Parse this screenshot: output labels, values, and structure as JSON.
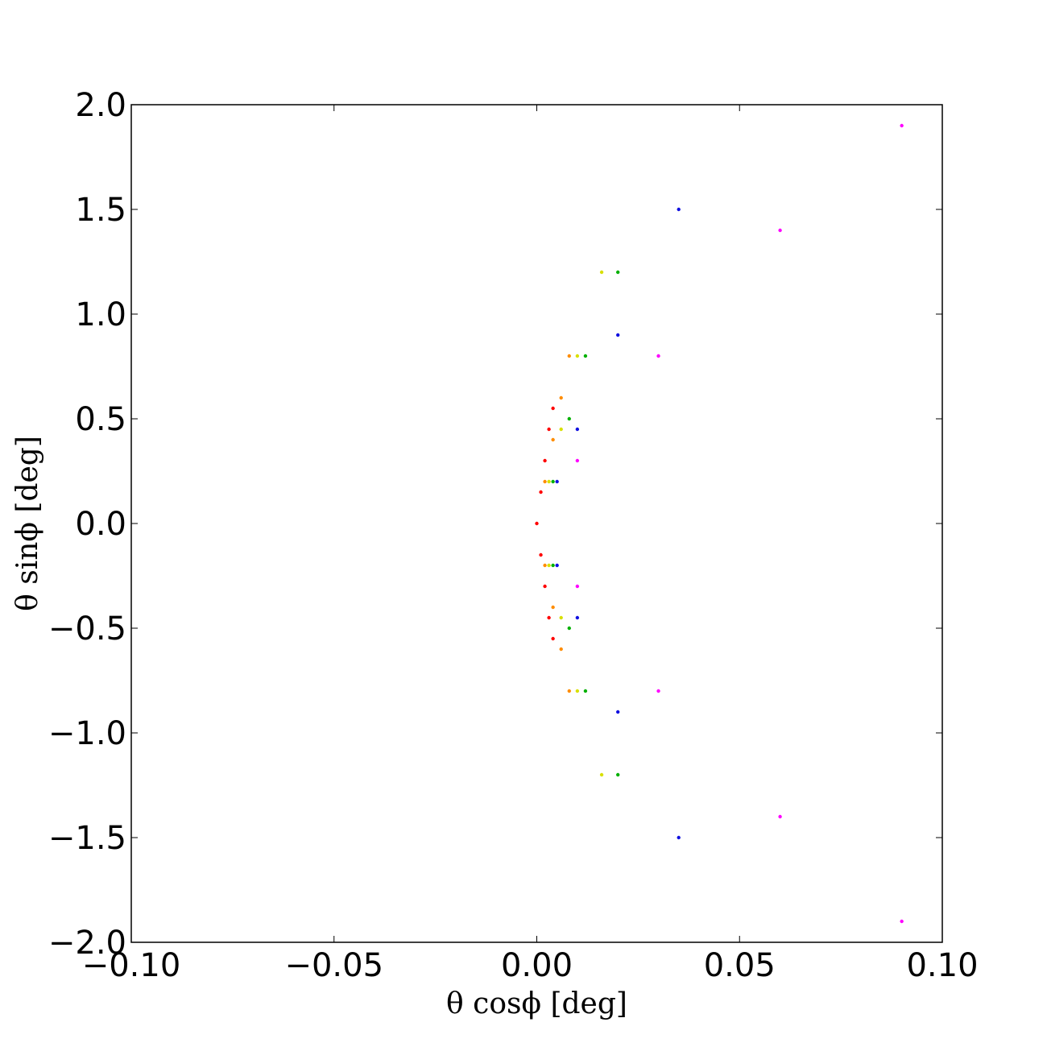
{
  "chart_data": {
    "type": "scatter",
    "title": "",
    "xlabel": "θ cosϕ [deg]",
    "ylabel": "θ sinϕ [deg]",
    "xlim": [
      -0.1,
      0.1
    ],
    "ylim": [
      -2.0,
      2.0
    ],
    "x_ticks": [
      -0.1,
      -0.05,
      0.0,
      0.05,
      0.1
    ],
    "x_tick_labels": [
      "−0.10",
      "−0.05",
      "0.00",
      "0.05",
      "0.10"
    ],
    "y_ticks": [
      -2.0,
      -1.5,
      -1.0,
      -0.5,
      0.0,
      0.5,
      1.0,
      1.5,
      2.0
    ],
    "y_tick_labels": [
      "−2.0",
      "−1.5",
      "−1.0",
      "−0.5",
      "0.0",
      "0.5",
      "1.0",
      "1.5",
      "2.0"
    ],
    "grid": false,
    "legend": "none",
    "colors": {
      "red": "#ff0000",
      "orange": "#ff8c00",
      "yellow": "#d8e000",
      "green": "#00b000",
      "blue": "#1010e0",
      "magenta": "#ff00ff"
    },
    "series": [
      {
        "color": "#ff0000",
        "points": [
          [
            0.0,
            0.0
          ],
          [
            0.001,
            0.15
          ],
          [
            0.002,
            0.3
          ],
          [
            0.003,
            0.45
          ],
          [
            0.004,
            0.55
          ],
          [
            0.001,
            -0.15
          ],
          [
            0.002,
            -0.3
          ],
          [
            0.003,
            -0.45
          ],
          [
            0.004,
            -0.55
          ]
        ]
      },
      {
        "color": "#ff8c00",
        "points": [
          [
            0.002,
            0.2
          ],
          [
            0.004,
            0.4
          ],
          [
            0.006,
            0.6
          ],
          [
            0.008,
            0.8
          ],
          [
            0.002,
            -0.2
          ],
          [
            0.004,
            -0.4
          ],
          [
            0.006,
            -0.6
          ],
          [
            0.008,
            -0.8
          ]
        ]
      },
      {
        "color": "#d8e000",
        "points": [
          [
            0.003,
            0.2
          ],
          [
            0.006,
            0.45
          ],
          [
            0.01,
            0.8
          ],
          [
            0.016,
            1.2
          ],
          [
            0.003,
            -0.2
          ],
          [
            0.006,
            -0.45
          ],
          [
            0.01,
            -0.8
          ],
          [
            0.016,
            -1.2
          ]
        ]
      },
      {
        "color": "#00b000",
        "points": [
          [
            0.004,
            0.2
          ],
          [
            0.008,
            0.5
          ],
          [
            0.012,
            0.8
          ],
          [
            0.02,
            1.2
          ],
          [
            0.004,
            -0.2
          ],
          [
            0.008,
            -0.5
          ],
          [
            0.012,
            -0.8
          ],
          [
            0.02,
            -1.2
          ]
        ]
      },
      {
        "color": "#1010e0",
        "points": [
          [
            0.005,
            0.2
          ],
          [
            0.01,
            0.45
          ],
          [
            0.02,
            0.9
          ],
          [
            0.035,
            1.5
          ],
          [
            0.005,
            -0.2
          ],
          [
            0.01,
            -0.45
          ],
          [
            0.02,
            -0.9
          ],
          [
            0.035,
            -1.5
          ]
        ]
      },
      {
        "color": "#ff00ff",
        "points": [
          [
            0.01,
            0.3
          ],
          [
            0.03,
            0.8
          ],
          [
            0.06,
            1.4
          ],
          [
            0.09,
            1.9
          ],
          [
            0.01,
            -0.3
          ],
          [
            0.03,
            -0.8
          ],
          [
            0.06,
            -1.4
          ],
          [
            0.09,
            -1.9
          ]
        ]
      }
    ]
  }
}
